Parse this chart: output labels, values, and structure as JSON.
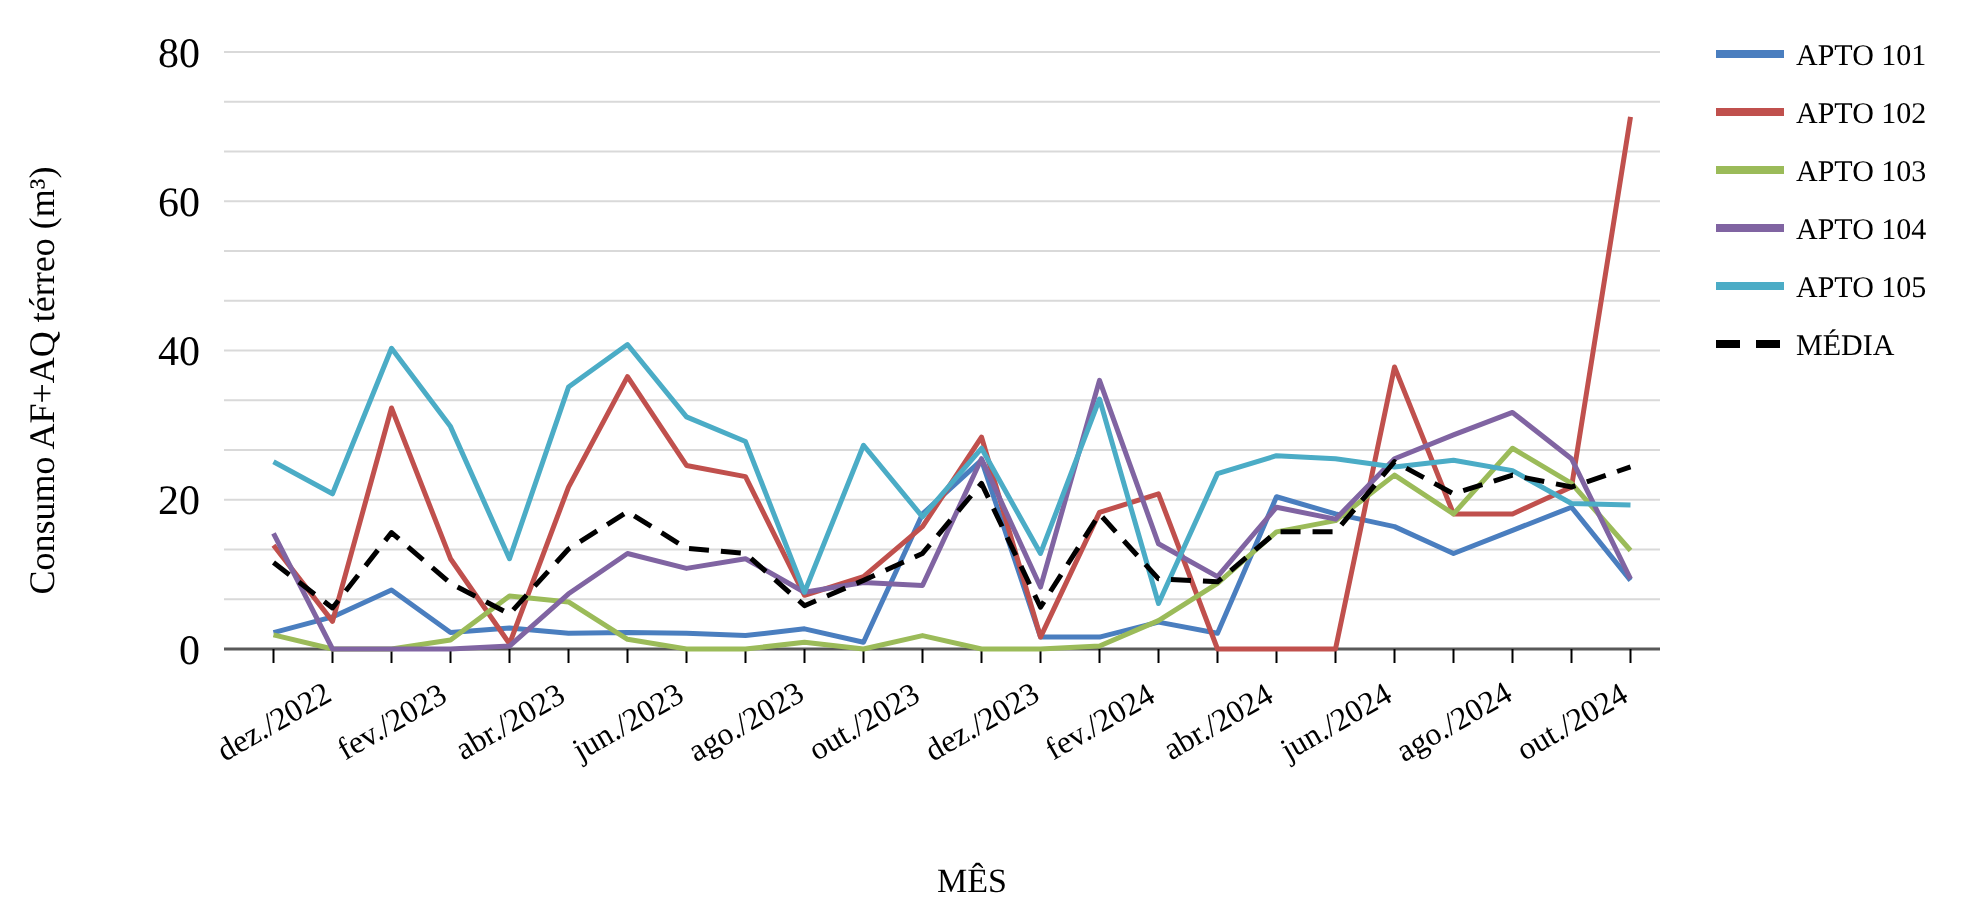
{
  "chart_data": {
    "type": "line",
    "xlabel": "MÊS",
    "ylabel": "Consumo AF+AQ térreo (m³)",
    "categories": [
      "dez./2022",
      null,
      "fev./2023",
      null,
      "abr./2023",
      null,
      "jun./2023",
      null,
      "ago./2023",
      null,
      "out./2023",
      null,
      "dez./2023",
      null,
      "fev./2024",
      null,
      "abr./2024",
      null,
      "jun./2024",
      null,
      "ago./2024",
      null,
      "out./2024",
      null
    ],
    "ylim": [
      0,
      80
    ],
    "yticks": [
      0,
      {
        "value": 6.67,
        "label": null
      },
      {
        "value": 13.33,
        "label": null
      },
      20,
      {
        "value": 26.67,
        "label": null
      },
      {
        "value": 33.33,
        "label": null
      },
      40,
      {
        "value": 46.67,
        "label": null
      },
      {
        "value": 53.33,
        "label": null
      },
      60,
      {
        "value": 66.67,
        "label": null
      },
      {
        "value": 73.33,
        "label": null
      },
      80
    ],
    "grid": "y",
    "legend": "right",
    "marker": "none",
    "series": [
      {
        "name": "APTO 101",
        "color": "#4a7ebf",
        "values": [
          2.2,
          4.3,
          7.9,
          2.2,
          2.8,
          2.1,
          2.2,
          2.1,
          1.8,
          2.7,
          0.9,
          18.1,
          25.3,
          1.6,
          1.6,
          3.6,
          2.1,
          20.4,
          18.1,
          16.4,
          12.8,
          15.9,
          19.0,
          9.2
        ]
      },
      {
        "name": "APTO 102",
        "color": "#c0504d",
        "values": [
          13.9,
          3.7,
          32.3,
          12.1,
          0.7,
          21.7,
          36.5,
          24.6,
          23.1,
          7.2,
          9.7,
          16.4,
          28.4,
          1.6,
          18.3,
          20.8,
          0,
          0,
          0,
          37.8,
          18.1,
          18.1,
          21.7,
          71.3
        ]
      },
      {
        "name": "APTO 103",
        "color": "#9bbb59",
        "values": [
          1.9,
          0,
          0,
          1.2,
          7.1,
          6.3,
          1.3,
          0,
          0,
          0.9,
          0,
          1.8,
          0,
          0,
          0.4,
          3.8,
          8.8,
          15.7,
          17.2,
          23.3,
          18.1,
          26.9,
          22.2,
          13.2
        ]
      },
      {
        "name": "APTO 104",
        "color": "#8064a2",
        "values": [
          15.5,
          0,
          0,
          0,
          0.4,
          7.4,
          12.8,
          10.8,
          12.1,
          7.6,
          8.9,
          8.5,
          25.5,
          8.3,
          36.0,
          14.1,
          9.7,
          19.0,
          17.4,
          25.5,
          28.7,
          31.7,
          25.5,
          9.4
        ]
      },
      {
        "name": "APTO 105",
        "color": "#4bacc6",
        "values": [
          25.1,
          20.8,
          40.3,
          29.8,
          12.1,
          35.1,
          40.8,
          31.1,
          27.8,
          7.6,
          27.3,
          17.7,
          26.9,
          12.8,
          33.5,
          6.1,
          23.5,
          25.9,
          25.5,
          24.4,
          25.3,
          23.9,
          19.5,
          19.3
        ]
      },
      {
        "name": "MÉDIA",
        "color": "#000000",
        "line_style": "dashed",
        "values": [
          11.6,
          5.5,
          15.6,
          8.8,
          4.7,
          13.4,
          18.4,
          13.5,
          12.8,
          5.8,
          9.2,
          12.8,
          22.2,
          5.6,
          18.1,
          9.4,
          9.0,
          15.7,
          15.7,
          25.1,
          20.8,
          23.3,
          21.7,
          24.4
        ]
      }
    ]
  }
}
